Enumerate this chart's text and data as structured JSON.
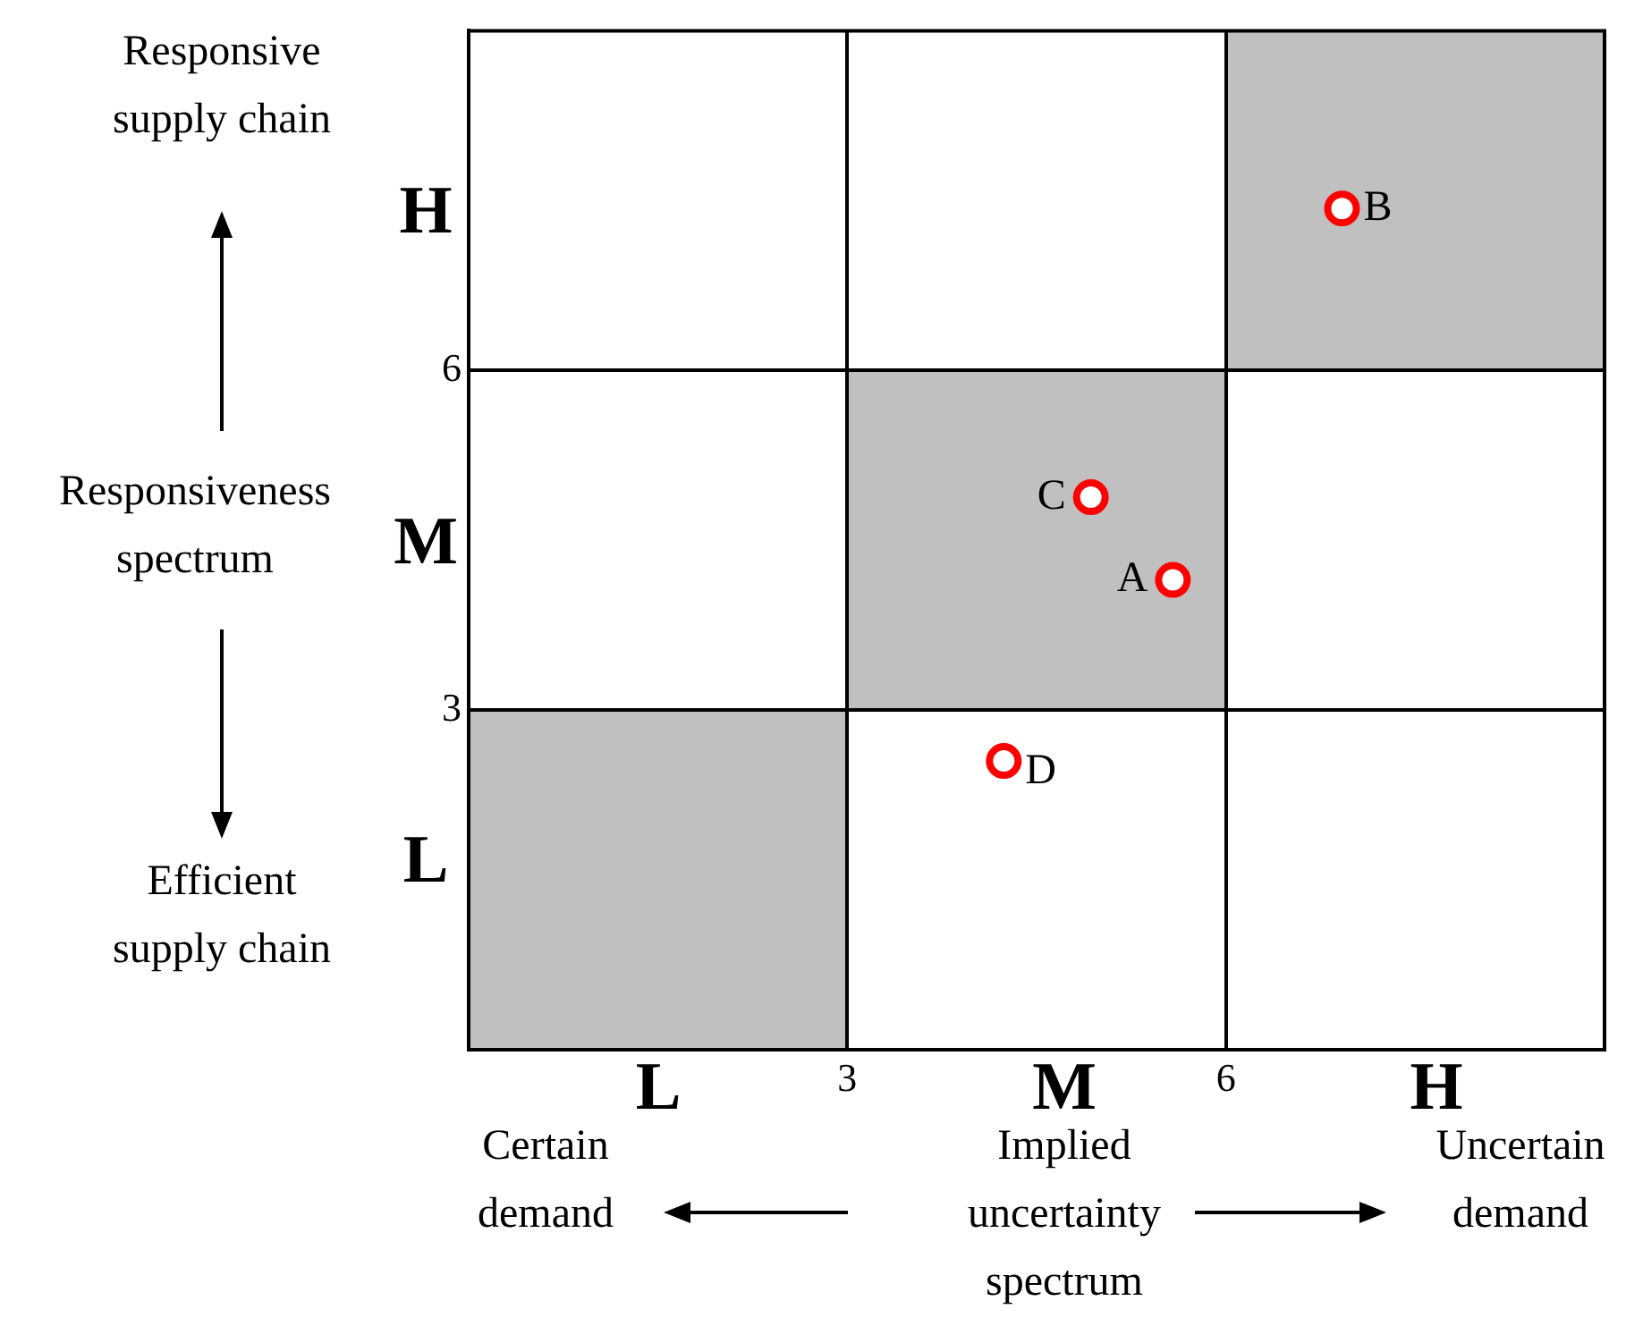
{
  "chart_data": {
    "type": "scatter",
    "xlabel": "Implied uncertainty spectrum",
    "ylabel": "Responsiveness spectrum",
    "xlim": [
      0,
      9
    ],
    "ylim": [
      0,
      9
    ],
    "xticks": [
      3,
      6
    ],
    "yticks": [
      3,
      6
    ],
    "grid": true,
    "legend": false,
    "marker": "circle",
    "series": [
      {
        "name": "A",
        "color": "#ff0000",
        "x": [
          5.58
        ],
        "values": [
          4.15
        ]
      },
      {
        "name": "B",
        "color": "#ff0000",
        "x": [
          6.92
        ],
        "values": [
          7.43
        ]
      },
      {
        "name": "C",
        "color": "#ff0000",
        "x": [
          4.93
        ],
        "values": [
          4.88
        ]
      },
      {
        "name": "D",
        "color": "#ff0000",
        "x": [
          4.24
        ],
        "values": [
          2.55
        ]
      }
    ],
    "annotations": [
      "L",
      "M",
      "H",
      "H",
      "M",
      "L",
      "Responsive supply chain",
      "Efficient supply chain",
      "Certain demand",
      "Uncertain demand"
    ]
  }
}
